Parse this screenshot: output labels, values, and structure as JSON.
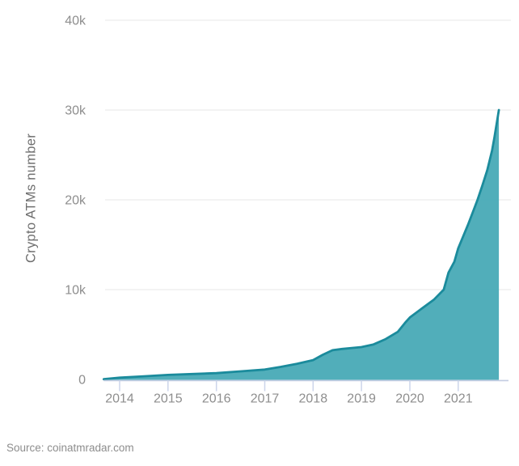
{
  "footer": {
    "source": "Source: coinatmradar.com"
  },
  "chart_data": {
    "type": "area",
    "title": "",
    "xlabel": "",
    "ylabel": "Crypto ATMs number",
    "ylim": [
      0,
      40000
    ],
    "xlim": [
      2013.67,
      2021.84
    ],
    "grid": "horizontal",
    "legend": "none",
    "colors": {
      "fill": "#48AAB6",
      "line": "#1B8B9C",
      "gridline": "#ececec",
      "axis_line": "#c3cce2",
      "tick_mark": "#ccd5ea",
      "tick_text": "#8e8e8e"
    },
    "yticks": [
      {
        "value": 0,
        "label": "0"
      },
      {
        "value": 10000,
        "label": "10k"
      },
      {
        "value": 20000,
        "label": "20k"
      },
      {
        "value": 30000,
        "label": "30k"
      },
      {
        "value": 40000,
        "label": "40k"
      }
    ],
    "xticks": [
      {
        "value": 2014,
        "label": "2014"
      },
      {
        "value": 2015,
        "label": "2015"
      },
      {
        "value": 2016,
        "label": "2016"
      },
      {
        "value": 2017,
        "label": "2017"
      },
      {
        "value": 2018,
        "label": "2018"
      },
      {
        "value": 2019,
        "label": "2019"
      },
      {
        "value": 2020,
        "label": "2020"
      },
      {
        "value": 2021,
        "label": "2021"
      }
    ],
    "series": [
      {
        "name": "Crypto ATMs number",
        "x": [
          2013.67,
          2014.0,
          2014.5,
          2015.0,
          2015.5,
          2016.0,
          2016.5,
          2017.0,
          2017.33,
          2017.67,
          2018.0,
          2018.2,
          2018.4,
          2018.6,
          2018.8,
          2019.0,
          2019.25,
          2019.5,
          2019.75,
          2019.9,
          2020.0,
          2020.25,
          2020.5,
          2020.7,
          2020.8,
          2020.92,
          2021.0,
          2021.1,
          2021.2,
          2021.3,
          2021.4,
          2021.5,
          2021.6,
          2021.7,
          2021.75,
          2021.84
        ],
        "values": [
          30,
          200,
          350,
          500,
          600,
          700,
          900,
          1100,
          1400,
          1750,
          2150,
          2750,
          3250,
          3400,
          3500,
          3600,
          3900,
          4500,
          5300,
          6300,
          6900,
          7900,
          8900,
          10000,
          11900,
          13100,
          14600,
          15900,
          17200,
          18600,
          20000,
          21600,
          23300,
          25500,
          27000,
          30000
        ]
      }
    ]
  }
}
